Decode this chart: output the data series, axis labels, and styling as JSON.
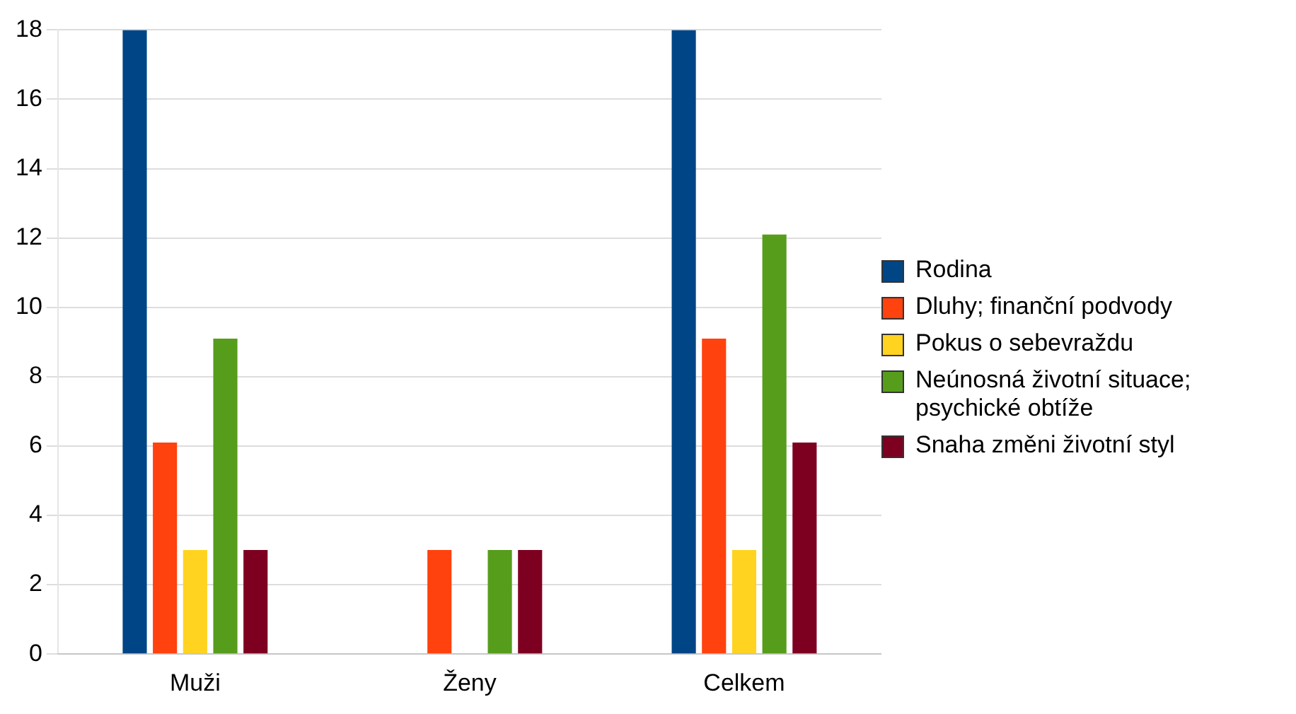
{
  "chart_data": {
    "type": "bar",
    "categories": [
      "Muži",
      "Ženy",
      "Celkem"
    ],
    "series": [
      {
        "name": "Rodina",
        "color": "#004586",
        "values": [
          18,
          0,
          18
        ]
      },
      {
        "name": "Dluhy; finanční podvody",
        "color": "#ff420e",
        "values": [
          6.1,
          3.0,
          9.1
        ]
      },
      {
        "name": "Pokus o sebevraždu",
        "color": "#ffd320",
        "values": [
          3.0,
          0,
          3.0
        ]
      },
      {
        "name": "Neúnosná životní situace; psychické obtíže",
        "color": "#579d1c",
        "values": [
          9.1,
          3.0,
          12.1
        ]
      },
      {
        "name": "Snaha změni životní styl",
        "color": "#7e0021",
        "values": [
          3.0,
          3.0,
          6.1
        ]
      }
    ],
    "ylim": [
      0,
      18
    ],
    "yticks": [
      0,
      2,
      4,
      6,
      8,
      10,
      12,
      14,
      16,
      18
    ],
    "grid": "y",
    "legend": "right"
  }
}
